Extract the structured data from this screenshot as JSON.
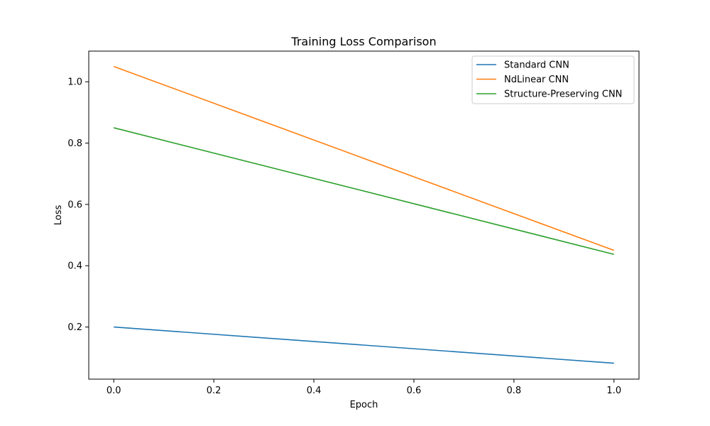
{
  "chart_data": {
    "type": "line",
    "title": "Training Loss Comparison",
    "xlabel": "Epoch",
    "ylabel": "Loss",
    "xlim": [
      -0.05,
      1.05
    ],
    "ylim": [
      0.03,
      1.1
    ],
    "x_ticks": [
      0.0,
      0.2,
      0.4,
      0.6,
      0.8,
      1.0
    ],
    "x_tick_labels": [
      "0.0",
      "0.2",
      "0.4",
      "0.6",
      "0.8",
      "1.0"
    ],
    "y_ticks": [
      0.2,
      0.4,
      0.6,
      0.8,
      1.0
    ],
    "y_tick_labels": [
      "0.2",
      "0.4",
      "0.6",
      "0.8",
      "1.0"
    ],
    "grid": false,
    "legend_position": "top-right",
    "x": [
      0,
      1
    ],
    "series": [
      {
        "name": "Standard CNN",
        "color": "#1f77b4",
        "values": [
          0.2,
          0.082
        ]
      },
      {
        "name": "NdLinear CNN",
        "color": "#ff7f0e",
        "values": [
          1.05,
          0.45
        ]
      },
      {
        "name": "Structure-Preserving CNN",
        "color": "#2ca02c",
        "values": [
          0.85,
          0.437
        ]
      }
    ]
  }
}
